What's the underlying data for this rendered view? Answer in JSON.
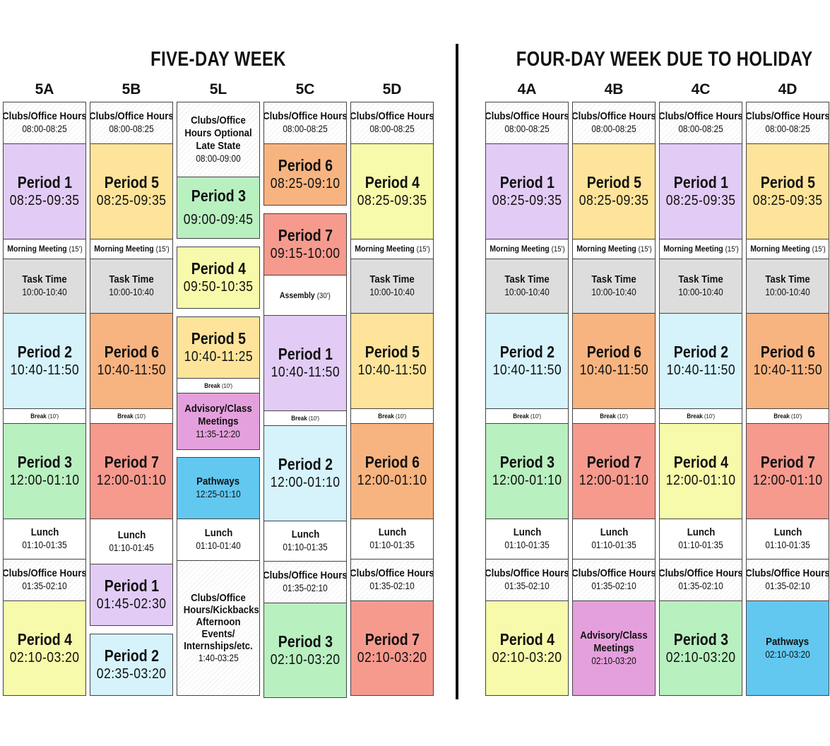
{
  "colors": {
    "purple": "#e2ccf5",
    "yellow": "#fde49a",
    "lime": "#f6faaa",
    "cyan": "#d6f3fc",
    "green": "#b9f0c0",
    "orange": "#f8b480",
    "red": "#f69a8e",
    "grey": "#dddddd",
    "magenta": "#e4a0dc",
    "blue": "#62c8f0"
  },
  "sections": {
    "five_day_title": "FIVE-DAY WEEK",
    "four_day_title": "FOUR-DAY WEEK DUE TO HOLIDAY"
  },
  "columns": [
    {
      "name": "5A",
      "blocks": [
        {
          "lines": [
            "Clubs/Office Hours",
            "08:00-08:25"
          ]
        },
        {
          "lines": [
            "Period 1",
            "08:25-09:35"
          ]
        },
        {
          "lines": [
            "Morning Meeting",
            "(15')"
          ]
        },
        {
          "lines": [
            "Task Time",
            "10:00-10:40"
          ]
        },
        {
          "lines": [
            "Period 2",
            "10:40-11:50"
          ]
        },
        {
          "lines": [
            "Break",
            "(10')"
          ]
        },
        {
          "lines": [
            "Period 3",
            "12:00-01:10"
          ]
        },
        {
          "lines": [
            "Lunch",
            "01:10-01:35"
          ]
        },
        {
          "lines": [
            "Clubs/Office Hours",
            "01:35-02:10"
          ]
        },
        {
          "lines": [
            "Period 4",
            "02:10-03:20"
          ]
        }
      ]
    },
    {
      "name": "5B",
      "blocks": [
        {
          "lines": [
            "Clubs/Office Hours",
            "08:00-08:25"
          ]
        },
        {
          "lines": [
            "Period 5",
            "08:25-09:35"
          ]
        },
        {
          "lines": [
            "Morning Meeting",
            "(15')"
          ]
        },
        {
          "lines": [
            "Task Time",
            "10:00-10:40"
          ]
        },
        {
          "lines": [
            "Period 6",
            "10:40-11:50"
          ]
        },
        {
          "lines": [
            "Break",
            "(10')"
          ]
        },
        {
          "lines": [
            "Period 7",
            "12:00-01:10"
          ]
        },
        {
          "lines": [
            "Lunch",
            "01:10-01:45"
          ]
        },
        {
          "lines": [
            "Period 1",
            "01:45-02:30"
          ]
        },
        {
          "lines": [
            "Period 2",
            "02:35-03:20"
          ]
        }
      ]
    },
    {
      "name": "5L",
      "blocks": [
        {
          "lines": [
            "Clubs/Office Hours Optional Late State",
            "08:00-09:00"
          ]
        },
        {
          "lines": [
            "Period 3",
            "09:00-09:45"
          ]
        },
        {
          "lines": [
            "Period 4",
            "09:50-10:35"
          ]
        },
        {
          "lines": [
            "Period 5",
            "10:40-11:25"
          ]
        },
        {
          "lines": [
            "Break",
            "(10')"
          ]
        },
        {
          "lines": [
            "Advisory/Class Meetings",
            "11:35-12:20"
          ]
        },
        {
          "lines": [
            "Pathways",
            "12:25-01:10"
          ]
        },
        {
          "lines": [
            "Lunch",
            "01:10-01:40"
          ]
        },
        {
          "lines": [
            "Clubs/Office Hours/Kickbacks/ Afternoon Events/ Internships/etc.",
            "1:40-03:25"
          ]
        }
      ]
    },
    {
      "name": "5C",
      "blocks": [
        {
          "lines": [
            "Clubs/Office Hours",
            "08:00-08:25"
          ]
        },
        {
          "lines": [
            "Period 6",
            "08:25-09:10"
          ]
        },
        {
          "lines": [
            "Period 7",
            "09:15-10:00"
          ]
        },
        {
          "lines": [
            "Assembly",
            "(30')"
          ]
        },
        {
          "lines": [
            "Period 1",
            "10:40-11:50"
          ]
        },
        {
          "lines": [
            "Break",
            "(10')"
          ]
        },
        {
          "lines": [
            "Period 2",
            "12:00-01:10"
          ]
        },
        {
          "lines": [
            "Lunch",
            "01:10-01:35"
          ]
        },
        {
          "lines": [
            "Clubs/Office Hours",
            "01:35-02:10"
          ]
        },
        {
          "lines": [
            "Period 3",
            "02:10-03:20"
          ]
        }
      ]
    },
    {
      "name": "5D",
      "blocks": [
        {
          "lines": [
            "Clubs/Office Hours",
            "08:00-08:25"
          ]
        },
        {
          "lines": [
            "Period 4",
            "08:25-09:35"
          ]
        },
        {
          "lines": [
            "Morning Meeting",
            "(15')"
          ]
        },
        {
          "lines": [
            "Task Time",
            "10:00-10:40"
          ]
        },
        {
          "lines": [
            "Period 5",
            "10:40-11:50"
          ]
        },
        {
          "lines": [
            "Break",
            "(10')"
          ]
        },
        {
          "lines": [
            "Period 6",
            "12:00-01:10"
          ]
        },
        {
          "lines": [
            "Lunch",
            "01:10-01:35"
          ]
        },
        {
          "lines": [
            "Clubs/Office Hours",
            "01:35-02:10"
          ]
        },
        {
          "lines": [
            "Period 7",
            "02:10-03:20"
          ]
        }
      ]
    },
    {
      "name": "4A",
      "blocks": [
        {
          "lines": [
            "Clubs/Office Hours",
            "08:00-08:25"
          ]
        },
        {
          "lines": [
            "Period 1",
            "08:25-09:35"
          ]
        },
        {
          "lines": [
            "Morning Meeting",
            "(15')"
          ]
        },
        {
          "lines": [
            "Task Time",
            "10:00-10:40"
          ]
        },
        {
          "lines": [
            "Period 2",
            "10:40-11:50"
          ]
        },
        {
          "lines": [
            "Break",
            "(10')"
          ]
        },
        {
          "lines": [
            "Period 3",
            "12:00-01:10"
          ]
        },
        {
          "lines": [
            "Lunch",
            "01:10-01:35"
          ]
        },
        {
          "lines": [
            "Clubs/Office Hours",
            "01:35-02:10"
          ]
        },
        {
          "lines": [
            "Period 4",
            "02:10-03:20"
          ]
        }
      ]
    },
    {
      "name": "4B",
      "blocks": [
        {
          "lines": [
            "Clubs/Office Hours",
            "08:00-08:25"
          ]
        },
        {
          "lines": [
            "Period 5",
            "08:25-09:35"
          ]
        },
        {
          "lines": [
            "Morning Meeting",
            "(15')"
          ]
        },
        {
          "lines": [
            "Task Time",
            "10:00-10:40"
          ]
        },
        {
          "lines": [
            "Period 6",
            "10:40-11:50"
          ]
        },
        {
          "lines": [
            "Break",
            "(10')"
          ]
        },
        {
          "lines": [
            "Period 7",
            "12:00-01:10"
          ]
        },
        {
          "lines": [
            "Lunch",
            "01:10-01:35"
          ]
        },
        {
          "lines": [
            "Clubs/Office Hours",
            "01:35-02:10"
          ]
        },
        {
          "lines": [
            "Advisory/Class Meetings",
            "02:10-03:20"
          ]
        }
      ]
    },
    {
      "name": "4C",
      "blocks": [
        {
          "lines": [
            "Clubs/Office Hours",
            "08:00-08:25"
          ]
        },
        {
          "lines": [
            "Period 1",
            "08:25-09:35"
          ]
        },
        {
          "lines": [
            "Morning Meeting",
            "(15')"
          ]
        },
        {
          "lines": [
            "Task Time",
            "10:00-10:40"
          ]
        },
        {
          "lines": [
            "Period 2",
            "10:40-11:50"
          ]
        },
        {
          "lines": [
            "Break",
            "(10')"
          ]
        },
        {
          "lines": [
            "Period 4",
            "12:00-01:10"
          ]
        },
        {
          "lines": [
            "Lunch",
            "01:10-01:35"
          ]
        },
        {
          "lines": [
            "Clubs/Office Hours",
            "01:35-02:10"
          ]
        },
        {
          "lines": [
            "Period 3",
            "02:10-03:20"
          ]
        }
      ]
    },
    {
      "name": "4D",
      "blocks": [
        {
          "lines": [
            "Clubs/Office Hours",
            "08:00-08:25"
          ]
        },
        {
          "lines": [
            "Period 5",
            "08:25-09:35"
          ]
        },
        {
          "lines": [
            "Morning Meeting",
            "(15')"
          ]
        },
        {
          "lines": [
            "Task Time",
            "10:00-10:40"
          ]
        },
        {
          "lines": [
            "Period 6",
            "10:40-11:50"
          ]
        },
        {
          "lines": [
            "Break",
            "(10')"
          ]
        },
        {
          "lines": [
            "Period 7",
            "12:00-01:10"
          ]
        },
        {
          "lines": [
            "Lunch",
            "01:10-01:35"
          ]
        },
        {
          "lines": [
            "Clubs/Office Hours",
            "01:35-02:10"
          ]
        },
        {
          "lines": [
            "Pathways",
            "02:10-03:20"
          ]
        }
      ]
    }
  ]
}
